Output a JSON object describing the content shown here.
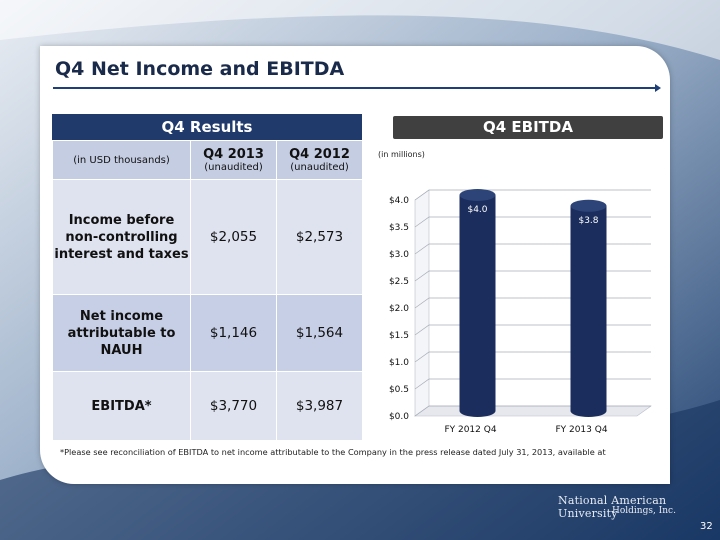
{
  "slide": {
    "title": "Q4 Net Income and EBITDA",
    "page_number": "32",
    "logo_line1": "National American University",
    "logo_line2": "Holdings, Inc.",
    "footnote": "*Please see reconciliation of EBITDA to net income attributable to the Company in the press release dated July 31, 2013, available at"
  },
  "table": {
    "heading": "Q4 Results",
    "unit_label": "(in USD thousands)",
    "columns": [
      {
        "label": "Q4 2013",
        "sub": "(unaudited)"
      },
      {
        "label": "Q4 2012",
        "sub": "(unaudited)"
      }
    ],
    "rows": [
      {
        "label": "Income before non-controlling interest and taxes",
        "values": [
          "$2,055",
          "$2,573"
        ]
      },
      {
        "label": "Net income attributable to NAUH",
        "values": [
          "$1,146",
          "$1,564"
        ]
      },
      {
        "label": "EBITDA*",
        "values": [
          "$3,770",
          "$3,987"
        ]
      }
    ]
  },
  "chart_data": {
    "type": "bar",
    "title": "Q4 EBITDA",
    "units_note": "(in millions)",
    "categories": [
      "FY 2012 Q4",
      "FY 2013 Q4"
    ],
    "values": [
      4.0,
      3.8
    ],
    "data_labels": [
      "$4.0",
      "$3.8"
    ],
    "ylim": [
      0,
      4.0
    ],
    "yticks": [
      "$0.0",
      "$0.5",
      "$1.0",
      "$1.5",
      "$2.0",
      "$2.5",
      "$3.0",
      "$3.5",
      "$4.0"
    ],
    "grid": true,
    "bar_color": "#1b2d5c"
  }
}
